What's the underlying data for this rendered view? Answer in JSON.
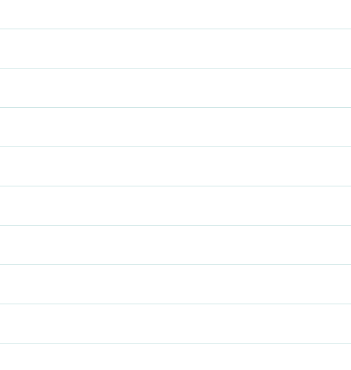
{
  "ruled_page": {
    "line_count": 9,
    "line_color": "#cfe6e6",
    "background_color": "#ffffff"
  }
}
